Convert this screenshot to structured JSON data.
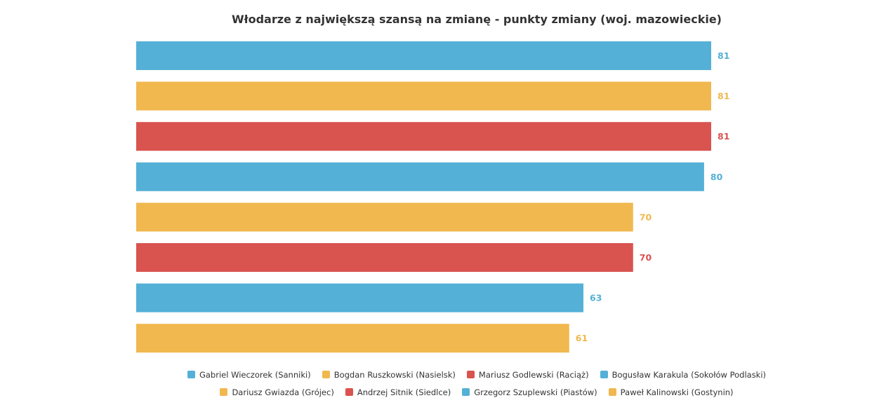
{
  "chart_data": {
    "type": "bar",
    "orientation": "horizontal",
    "title": "Włodarze z największą szansą na zmianę - punkty zmiany (woj. mazowieckie)",
    "categories": [
      "Gabriel Wieczorek (Sanniki)",
      "Bogdan Ruszkowski (Nasielsk)",
      "Mariusz Godlewski (Raciąż)",
      "Bogusław Karakula (Sokołów Podlaski)",
      "Dariusz Gwiazda (Grójec)",
      "Andrzej Sitnik (Siedlce)",
      "Grzegorz Szuplewski (Piastów)",
      "Paweł Kalinowski (Gostynin)"
    ],
    "values": [
      81,
      81,
      81,
      80,
      70,
      70,
      63,
      61
    ],
    "colors": [
      "#54b0d6",
      "#f0b84e",
      "#d9534f",
      "#54b0d6",
      "#f0b84e",
      "#d9534f",
      "#54b0d6",
      "#f0b84e"
    ],
    "value_labels": [
      "81",
      "81",
      "81",
      "80",
      "70",
      "70",
      "63",
      "61"
    ],
    "xlim": [
      0,
      81
    ],
    "grid": false,
    "axes_visible": false,
    "legend_position": "bottom",
    "legend_rows": [
      [
        0,
        1,
        2,
        3
      ],
      [
        4,
        5,
        6,
        7
      ]
    ]
  }
}
